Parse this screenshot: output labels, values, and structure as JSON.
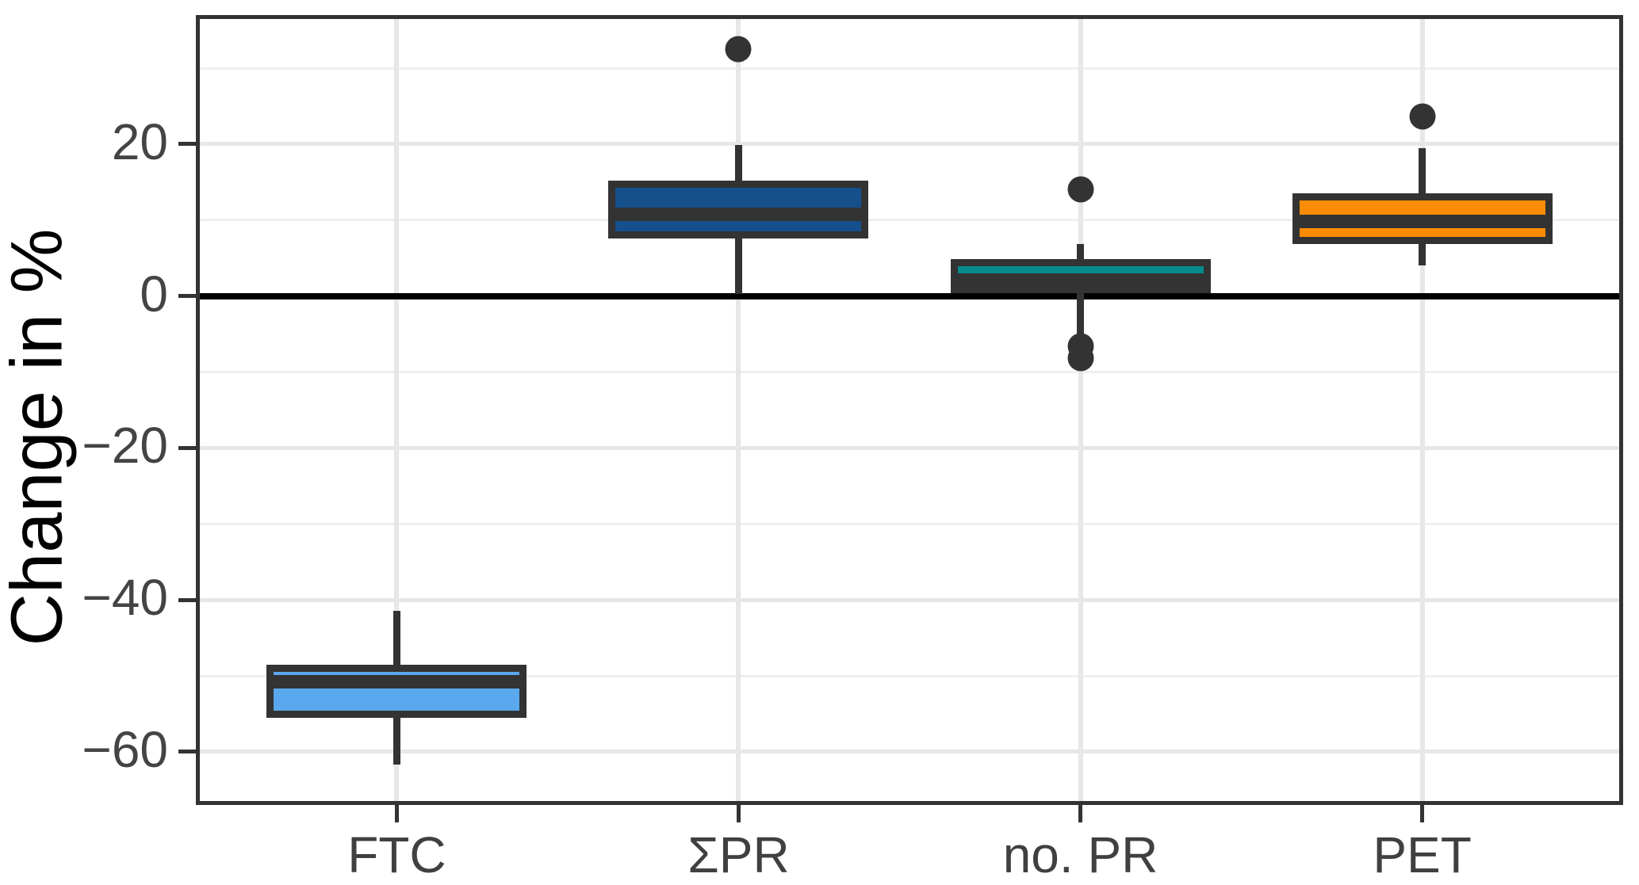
{
  "chart_data": {
    "type": "boxplot",
    "title": "",
    "ylabel": "Change in %",
    "xlabel": "",
    "categories": [
      "FTC",
      "ΣPR",
      "no. PR",
      "PET"
    ],
    "series": [
      {
        "name": "FTC",
        "color": "#59A7ED",
        "min": -61.7,
        "q1": -55.5,
        "median": -50.8,
        "q3": -48.5,
        "max": -41.4,
        "outliers": []
      },
      {
        "name": "ΣPR",
        "color": "#15508C",
        "min": 0.3,
        "q1": 7.6,
        "median": 10.8,
        "q3": 15.2,
        "max": 19.9,
        "outliers": [
          32.5
        ]
      },
      {
        "name": "no. PR",
        "color": "#048C8D",
        "min": -5.2,
        "q1": 0.4,
        "median": 2.1,
        "q3": 4.9,
        "max": 6.9,
        "outliers": [
          14.0,
          -6.6,
          -8.2
        ]
      },
      {
        "name": "PET",
        "color": "#FB8C05",
        "min": 4.0,
        "q1": 6.9,
        "median": 9.8,
        "q3": 13.5,
        "max": 19.5,
        "outliers": [
          23.6
        ]
      }
    ],
    "y_axis": {
      "range_min": -67,
      "range_max": 37,
      "major_ticks": [
        {
          "value": 20,
          "label": "20"
        },
        {
          "value": 0,
          "label": "0"
        },
        {
          "value": -20,
          "label": "−20"
        },
        {
          "value": -40,
          "label": "−40"
        },
        {
          "value": -60,
          "label": "−60"
        }
      ],
      "minor_ticks": [
        30,
        10,
        -10,
        -30,
        -50
      ],
      "zero_line_value": 0
    },
    "layout_hints": {
      "grid": "major and minor horizontal, major vertical per category",
      "legend": "none",
      "background": "white panel with dark border"
    },
    "style": {
      "stroke_color": "#333333",
      "zero_line_color": "#000000",
      "grid_major_color": "#E7E7E7",
      "grid_minor_color": "#EFEFEF",
      "tick_label_color": "#444444",
      "axis_title_color": "#000000",
      "panel_background": "#FFFFFF"
    }
  }
}
